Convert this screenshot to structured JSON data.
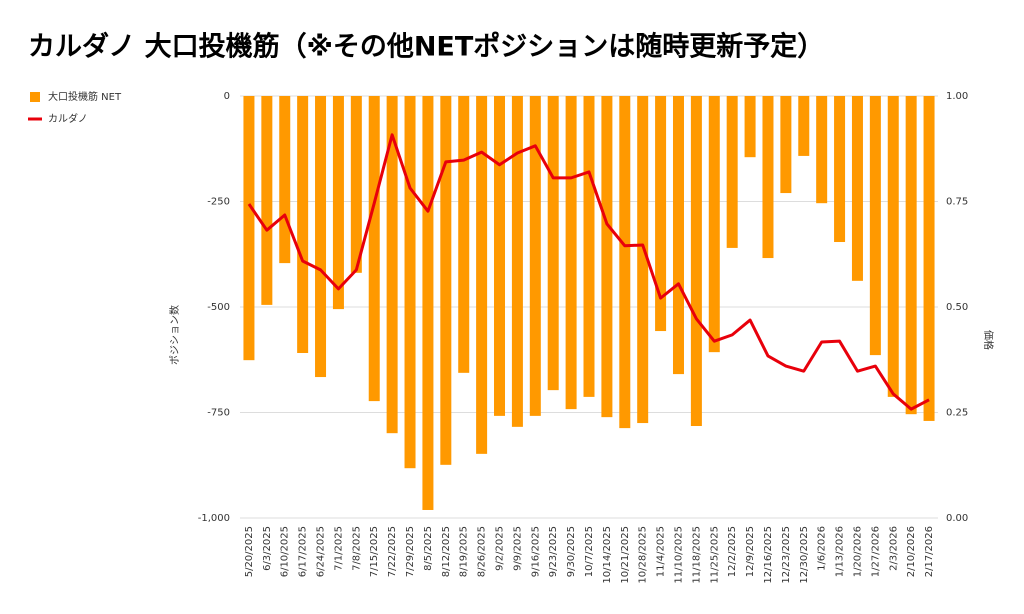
{
  "chart_data": {
    "type": "bar_line",
    "title": "カルダノ 大口投機筋（※その他NETポジションは随時更新予定）",
    "y_label": "ポジション数",
    "y2_label": "価格",
    "categories": [
      "5/20/2025",
      "6/3/2025",
      "6/10/2025",
      "6/17/2025",
      "6/24/2025",
      "7/1/2025",
      "7/8/2025",
      "7/15/2025",
      "7/22/2025",
      "7/29/2025",
      "8/5/2025",
      "8/12/2025",
      "8/19/2025",
      "8/26/2025",
      "9/2/2025",
      "9/9/2025",
      "9/16/2025",
      "9/23/2025",
      "9/30/2025",
      "10/7/2025",
      "10/14/2025",
      "10/21/2025",
      "10/28/2025",
      "11/4/2025",
      "11/10/2025",
      "11/18/2025",
      "11/25/2025",
      "12/2/2025",
      "12/9/2025",
      "12/16/2025",
      "12/23/2025",
      "12/30/2025",
      "1/6/2026",
      "1/13/2026",
      "1/20/2026",
      "1/27/2026",
      "2/3/2026",
      "2/10/2026",
      "2/17/2026"
    ],
    "series": [
      {
        "name": "大口投機筋  NET",
        "color": "#ff9900",
        "kind": "bar",
        "values": [
          -626,
          -495,
          -396,
          -609,
          -666,
          -505,
          -419,
          -723,
          -799,
          -882,
          -981,
          -874,
          -656,
          -848,
          -758,
          -784,
          -758,
          -697,
          -742,
          -713,
          -761,
          -787,
          -775,
          -557,
          -659,
          -782,
          -607,
          -360,
          -145,
          -384,
          -230,
          -142,
          -254,
          -346,
          -438,
          -614,
          -713,
          -754,
          -770
        ]
      },
      {
        "name": "カルダノ",
        "color": "#e8000b",
        "kind": "line",
        "axis": "y2",
        "values": [
          0.744,
          0.682,
          0.718,
          0.609,
          0.588,
          0.543,
          0.588,
          0.746,
          0.908,
          0.782,
          0.727,
          0.844,
          0.848,
          0.867,
          0.837,
          0.865,
          0.882,
          0.806,
          0.806,
          0.82,
          0.697,
          0.645,
          0.647,
          0.521,
          0.555,
          0.472,
          0.419,
          0.434,
          0.469,
          0.384,
          0.36,
          0.348,
          0.417,
          0.419,
          0.348,
          0.36,
          0.294,
          0.258,
          0.28
        ]
      }
    ],
    "ylim": [
      -1000,
      0
    ],
    "yticks": [
      {
        "value": -1000,
        "label": "-1,000"
      },
      -750,
      -500,
      -250,
      0
    ],
    "y2lim": [
      0,
      1
    ],
    "y2ticks": [
      {
        "value": 0,
        "label": "0.00"
      },
      {
        "value": 0.25,
        "label": "0.25"
      },
      {
        "value": 0.5,
        "label": "0.50"
      },
      {
        "value": 0.75,
        "label": "0.75"
      },
      {
        "value": 1,
        "label": "1.00"
      }
    ],
    "grid": true,
    "legend": "top-left"
  }
}
